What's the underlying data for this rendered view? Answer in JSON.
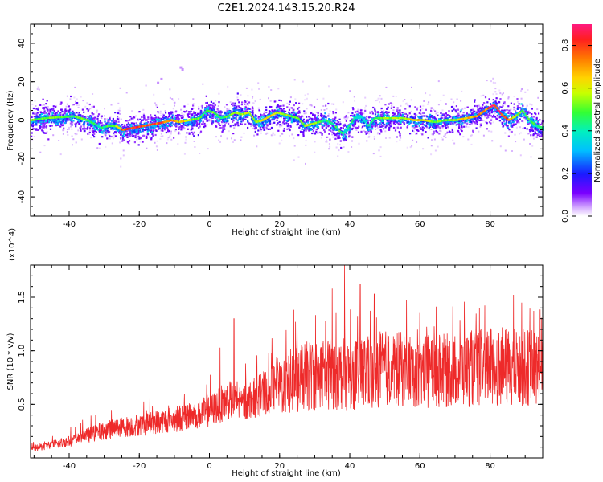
{
  "title": "C2E1.2024.143.15.20.R24",
  "chart_data": [
    {
      "type": "heatmap",
      "xlabel": "Height of straight line (km)",
      "ylabel": "Frequency (Hz)",
      "xlim": [
        -51,
        95
      ],
      "ylim": [
        -50,
        50
      ],
      "x_ticks": [
        -40,
        -20,
        0,
        20,
        40,
        60,
        80
      ],
      "y_ticks": [
        -40,
        -20,
        0,
        20,
        40
      ],
      "colorbar": {
        "label": "Normalized spectral amplitude",
        "range": [
          0.0,
          0.9
        ],
        "ticks": [
          "0.0",
          "0.2",
          "0.4",
          "0.6",
          "0.8"
        ]
      },
      "ridge": {
        "x": [
          -51,
          -47,
          -43,
          -39,
          -35,
          -33,
          -31,
          -29,
          -27,
          -25,
          -22,
          -19,
          -16,
          -13,
          -11,
          -9,
          -6,
          -3,
          -1,
          1,
          3,
          5,
          7,
          9,
          11,
          13,
          15,
          17,
          19,
          21,
          23,
          25,
          27,
          29,
          31,
          33,
          35,
          37,
          38,
          39,
          41,
          43,
          45,
          47,
          49,
          52,
          55,
          58,
          61,
          64,
          67,
          70,
          73,
          76,
          79,
          81,
          83,
          85,
          87,
          89,
          91,
          93,
          95
        ],
        "y": [
          0,
          1,
          1.5,
          2,
          0,
          -2,
          -4,
          -3,
          -3,
          -5,
          -4,
          -3,
          -2,
          -1,
          0,
          -1,
          0,
          1,
          5,
          4,
          1,
          2,
          4,
          3,
          4,
          -1,
          0,
          2,
          4,
          3,
          2,
          1,
          -3,
          -2,
          -1,
          0,
          -2,
          -6,
          -7,
          -5,
          1,
          2,
          -3,
          1,
          1,
          1,
          1,
          0,
          0,
          -1,
          0,
          0,
          1,
          2,
          6,
          8,
          3,
          0,
          2,
          5,
          0,
          -3,
          -4
        ]
      },
      "ridge_value": [
        0.55,
        0.5,
        0.55,
        0.5,
        0.5,
        0.45,
        0.45,
        0.5,
        0.55,
        0.8,
        0.85,
        0.85,
        0.8,
        0.8,
        0.75,
        0.7,
        0.6,
        0.5,
        0.45,
        0.55,
        0.45,
        0.5,
        0.6,
        0.55,
        0.6,
        0.55,
        0.6,
        0.65,
        0.6,
        0.6,
        0.55,
        0.5,
        0.55,
        0.6,
        0.5,
        0.45,
        0.45,
        0.5,
        0.45,
        0.4,
        0.45,
        0.4,
        0.4,
        0.45,
        0.55,
        0.6,
        0.6,
        0.65,
        0.6,
        0.55,
        0.5,
        0.6,
        0.65,
        0.7,
        0.8,
        0.85,
        0.8,
        0.75,
        0.6,
        0.5,
        0.5,
        0.45,
        0.45
      ],
      "outliers": [
        {
          "x": -8,
          "y": 27
        },
        {
          "x": -8.5,
          "y": 28
        },
        {
          "x": -15,
          "y": 20
        },
        {
          "x": -14,
          "y": 22
        }
      ]
    },
    {
      "type": "line",
      "xlabel": "Height of straight line (km)",
      "ylabel": "SNR (10 * v/v)",
      "multiplier": "(x10^4)",
      "xlim": [
        -51,
        95
      ],
      "ylim": [
        0,
        18000
      ],
      "x_ticks": [
        -40,
        -20,
        0,
        20,
        40,
        60,
        80
      ],
      "y_ticks": [
        "0.5",
        "1.0",
        "1.5"
      ],
      "y_tick_values": [
        5000,
        10000,
        15000
      ],
      "series": [
        {
          "color": "#ee2a2a",
          "trend_x": [
            -51,
            -40,
            -30,
            -20,
            -10,
            0,
            5,
            10,
            20,
            30,
            40,
            50,
            60,
            70,
            80,
            95
          ],
          "trend_y": [
            800,
            1500,
            2500,
            3000,
            3500,
            4200,
            5200,
            5000,
            6500,
            7500,
            7500,
            8000,
            7800,
            7800,
            8200,
            8000
          ],
          "peaks": [
            {
              "x": 38.5,
              "y": 18000
            },
            {
              "x": 35,
              "y": 15800
            },
            {
              "x": 43,
              "y": 16200
            },
            {
              "x": 47,
              "y": 15300
            },
            {
              "x": 24,
              "y": 13800
            },
            {
              "x": 7,
              "y": 13000
            },
            {
              "x": 3,
              "y": 10300
            },
            {
              "x": 60,
              "y": 13500
            },
            {
              "x": 89,
              "y": 14500
            }
          ]
        }
      ]
    }
  ]
}
